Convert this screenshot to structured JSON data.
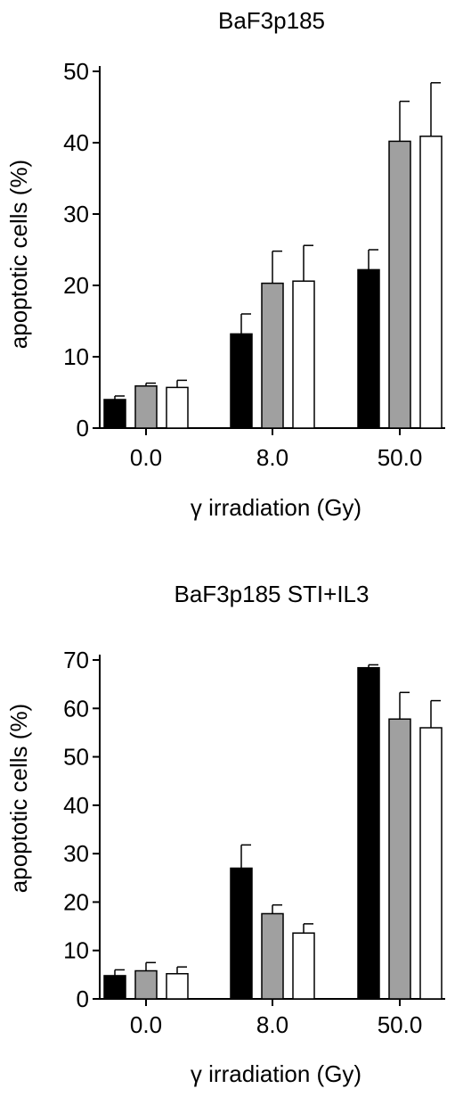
{
  "chart_data": [
    {
      "type": "bar",
      "title": "BaF3p185",
      "xlabel": "γ irradiation (Gy)",
      "ylabel": "apoptotic cells (%)",
      "categories": [
        "0.0",
        "8.0",
        "50.0"
      ],
      "ylim": [
        0,
        50
      ],
      "yticks": [
        "0",
        "10",
        "20",
        "30",
        "40",
        "50"
      ],
      "colors": [
        "#000000",
        "#a0a0a0",
        "#ffffff"
      ],
      "series": [
        {
          "values": [
            4.0,
            13.2,
            22.2
          ],
          "errors": [
            0.5,
            2.8,
            2.8
          ]
        },
        {
          "values": [
            5.9,
            20.3,
            40.2
          ],
          "errors": [
            0.4,
            4.5,
            5.6
          ]
        },
        {
          "values": [
            5.7,
            20.6,
            40.9
          ],
          "errors": [
            1.0,
            5.0,
            7.5
          ]
        }
      ]
    },
    {
      "type": "bar",
      "title": "BaF3p185 STI+IL3",
      "xlabel": "γ irradiation (Gy)",
      "ylabel": "apoptotic cells (%)",
      "categories": [
        "0.0",
        "8.0",
        "50.0"
      ],
      "ylim": [
        0,
        70
      ],
      "yticks": [
        "0",
        "10",
        "20",
        "30",
        "40",
        "50",
        "60",
        "70"
      ],
      "colors": [
        "#000000",
        "#a0a0a0",
        "#ffffff"
      ],
      "series": [
        {
          "values": [
            4.8,
            27.0,
            68.4
          ],
          "errors": [
            1.2,
            4.8,
            0.6
          ]
        },
        {
          "values": [
            5.8,
            17.6,
            57.8
          ],
          "errors": [
            1.7,
            1.8,
            5.5
          ]
        },
        {
          "values": [
            5.2,
            13.6,
            56.0
          ],
          "errors": [
            1.4,
            1.9,
            5.6
          ]
        }
      ]
    }
  ]
}
